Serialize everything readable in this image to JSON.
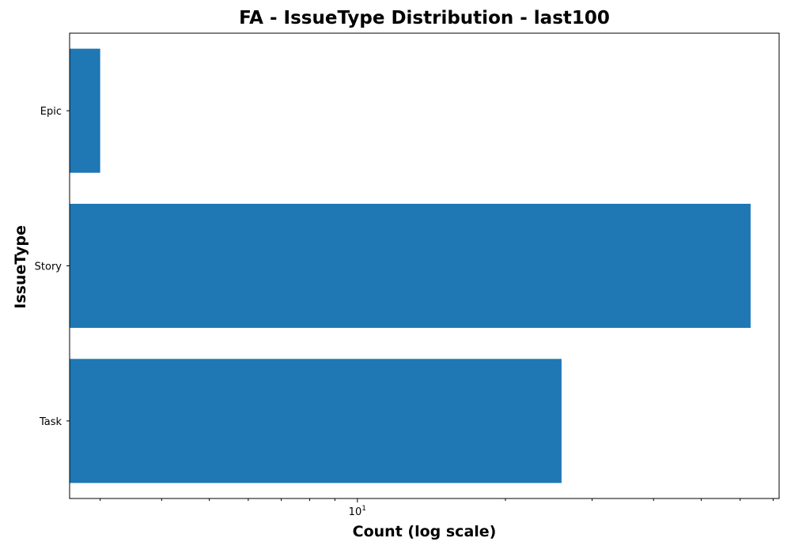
{
  "chart_data": {
    "type": "bar",
    "orientation": "horizontal",
    "title": "FA - IssueType Distribution - last100",
    "xlabel": "Count (log scale)",
    "ylabel": "IssueType",
    "x_scale": "log",
    "xlim": [
      2.6,
      72
    ],
    "x_tick_labels": [
      {
        "value": 10,
        "base": "10",
        "exp": "1"
      }
    ],
    "categories": [
      "Epic",
      "Story",
      "Task"
    ],
    "values": [
      3,
      63,
      26
    ],
    "bar_color": "#1f77b4",
    "grid": false,
    "legend": "none"
  }
}
